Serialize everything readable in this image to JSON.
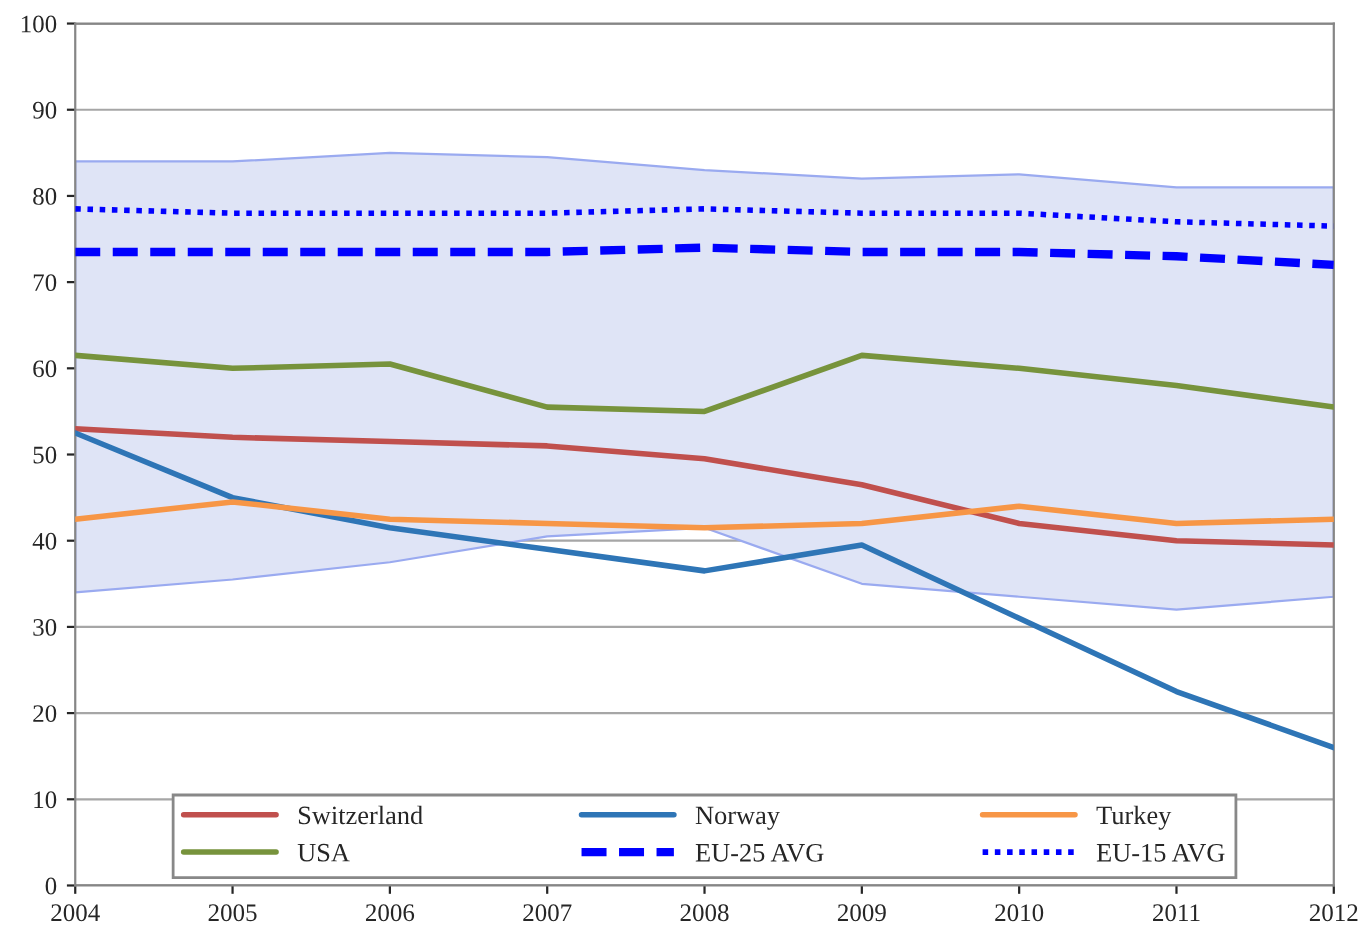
{
  "chart_data": {
    "type": "line",
    "x": [
      2004,
      2005,
      2006,
      2007,
      2008,
      2009,
      2010,
      2011,
      2012
    ],
    "series": [
      {
        "name": "Switzerland",
        "color": "#c0504d",
        "values": [
          53,
          52,
          51.5,
          51,
          49.5,
          46.5,
          42,
          40,
          39.5
        ]
      },
      {
        "name": "Norway",
        "color": "#2e75b6",
        "values": [
          52.5,
          45,
          41.5,
          39,
          36.5,
          39.5,
          31,
          22.5,
          16
        ]
      },
      {
        "name": "Turkey",
        "color": "#f79646",
        "values": [
          42.5,
          44.5,
          42.5,
          42,
          41.5,
          42,
          44,
          42,
          42.5
        ]
      },
      {
        "name": "USA",
        "color": "#77933c",
        "values": [
          61.5,
          60,
          60.5,
          55.5,
          55,
          61.5,
          60,
          58,
          55.5
        ]
      },
      {
        "name": "EU-25 AVG",
        "color": "#0000ff",
        "line_style": "dashed",
        "values": [
          73.5,
          73.5,
          73.5,
          73.5,
          74,
          73.5,
          73.5,
          73,
          72
        ],
        "lower": [
          34,
          35.5,
          37.5,
          40.5,
          41.5,
          35,
          33.5,
          32,
          33.5
        ],
        "upper": [
          84,
          84,
          85,
          84.5,
          83,
          82,
          82.5,
          81,
          81
        ]
      },
      {
        "name": "EU-15 AVG",
        "color": "#0000ff",
        "line_style": "dotted",
        "values": [
          78.5,
          78,
          78,
          78,
          78.5,
          78,
          78,
          77,
          76.5
        ]
      }
    ],
    "xlim": [
      2004,
      2012
    ],
    "xticks": [
      2004,
      2005,
      2006,
      2007,
      2008,
      2009,
      2010,
      2011,
      2012
    ],
    "ylim": [
      0,
      100
    ],
    "yticks": [
      0,
      10,
      20,
      30,
      40,
      50,
      60,
      70,
      80,
      90,
      100
    ],
    "grid": "y",
    "legend": "bottom",
    "marker": "none"
  }
}
